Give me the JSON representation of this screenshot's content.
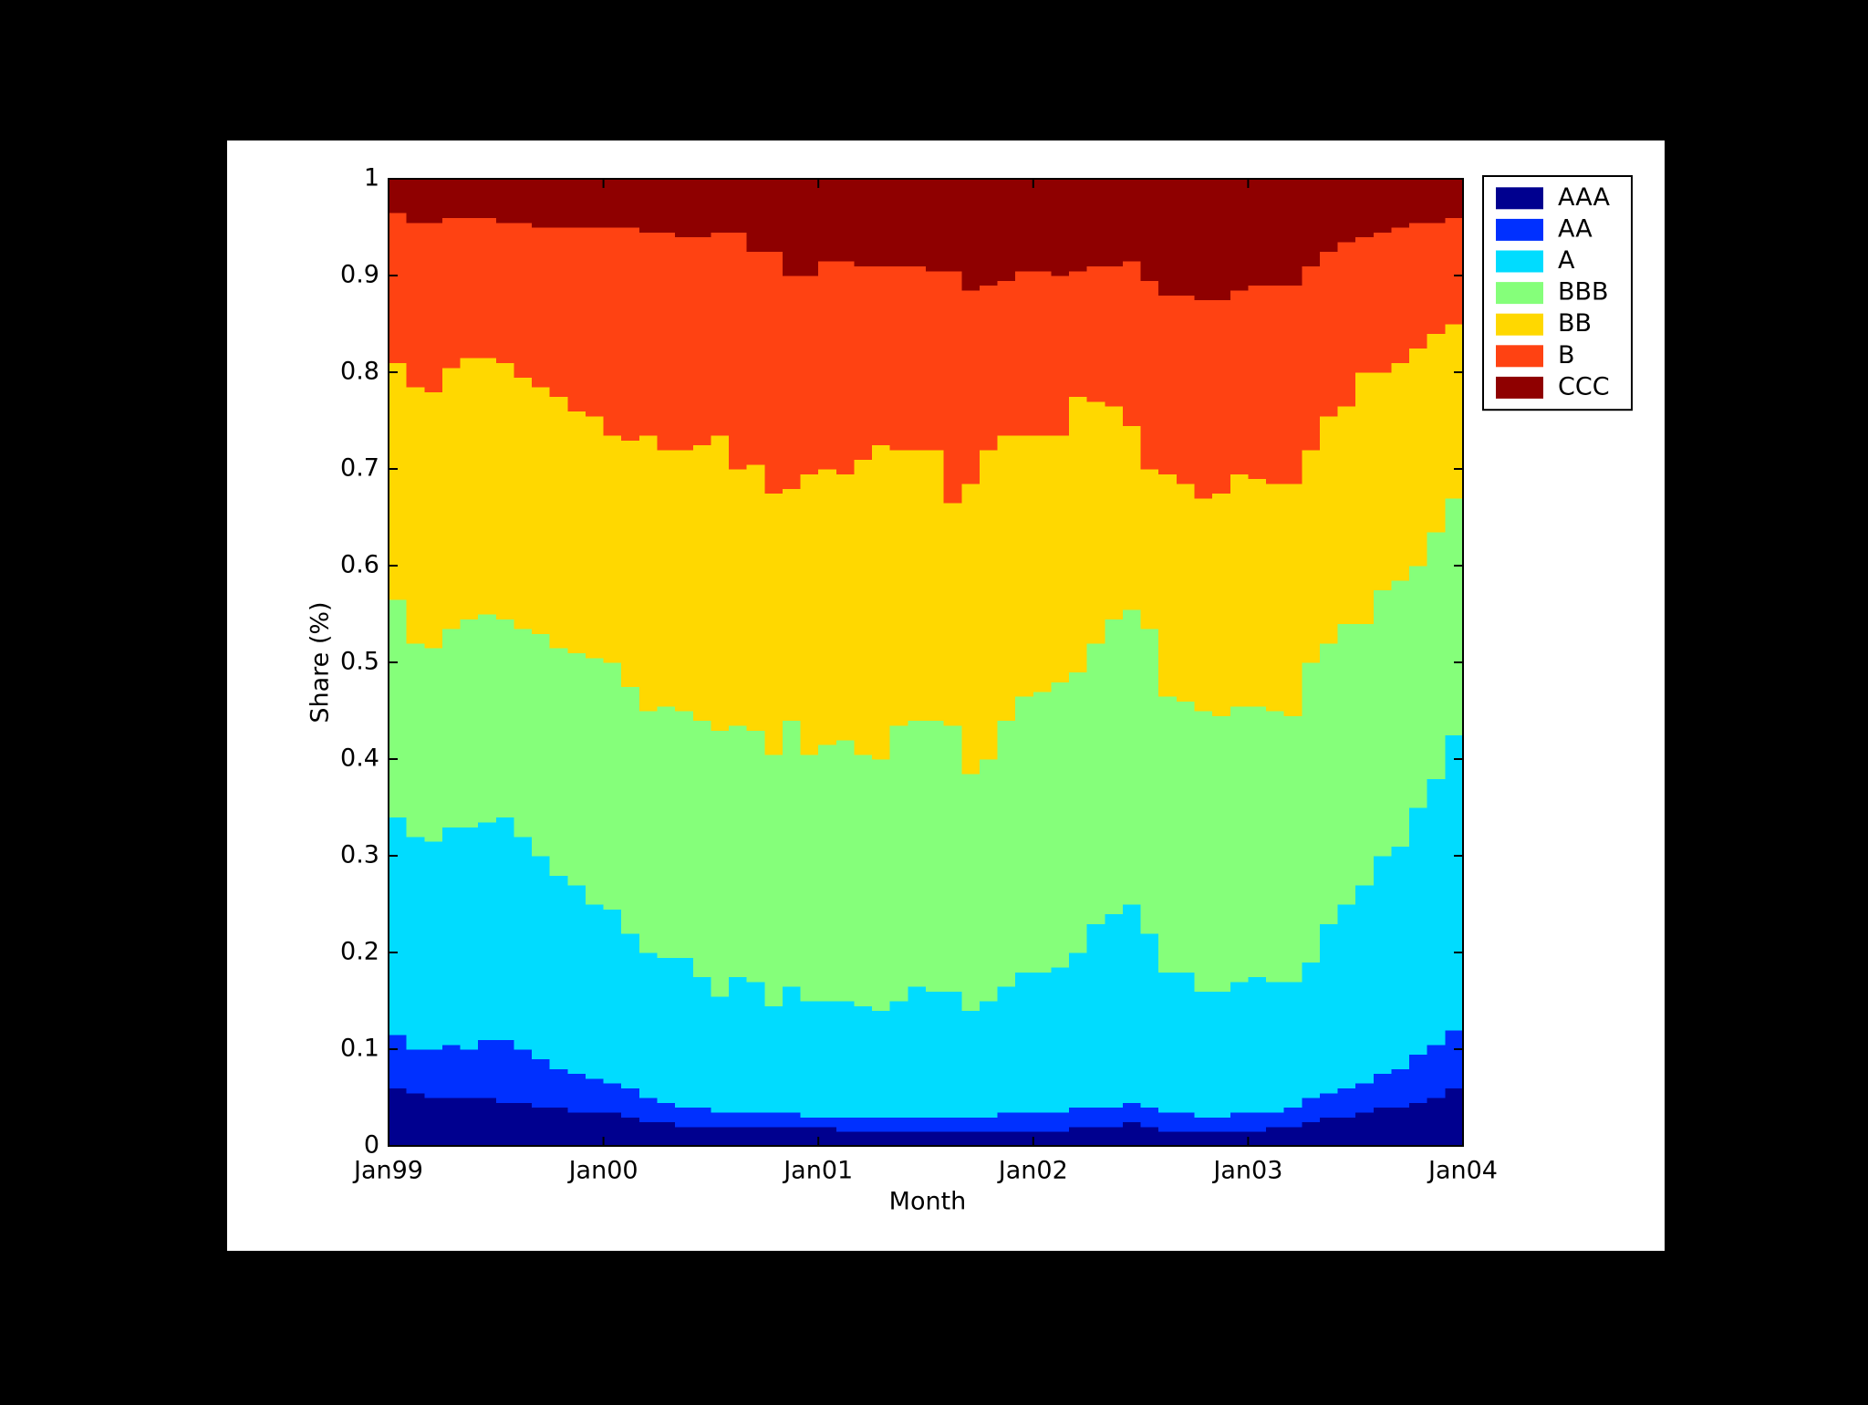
{
  "chart_data": {
    "type": "stacked_area",
    "x_label": "Month",
    "y_label": "Share (%)",
    "x": [
      "1999-01",
      "1999-02",
      "1999-03",
      "1999-04",
      "1999-05",
      "1999-06",
      "1999-07",
      "1999-08",
      "1999-09",
      "1999-10",
      "1999-11",
      "1999-12",
      "2000-01",
      "2000-02",
      "2000-03",
      "2000-04",
      "2000-05",
      "2000-06",
      "2000-07",
      "2000-08",
      "2000-09",
      "2000-10",
      "2000-11",
      "2000-12",
      "2001-01",
      "2001-02",
      "2001-03",
      "2001-04",
      "2001-05",
      "2001-06",
      "2001-07",
      "2001-08",
      "2001-09",
      "2001-10",
      "2001-11",
      "2001-12",
      "2002-01",
      "2002-02",
      "2002-03",
      "2002-04",
      "2002-05",
      "2002-06",
      "2002-07",
      "2002-08",
      "2002-09",
      "2002-10",
      "2002-11",
      "2002-12",
      "2003-01",
      "2003-02",
      "2003-03",
      "2003-04",
      "2003-05",
      "2003-06",
      "2003-07",
      "2003-08",
      "2003-09",
      "2003-10",
      "2003-11",
      "2003-12"
    ],
    "xlim": [
      "1999-01",
      "2004-01"
    ],
    "xticks": [
      {
        "value": "1999-01",
        "label": "Jan99"
      },
      {
        "value": "2000-01",
        "label": "Jan00"
      },
      {
        "value": "2001-01",
        "label": "Jan01"
      },
      {
        "value": "2002-01",
        "label": "Jan02"
      },
      {
        "value": "2003-01",
        "label": "Jan03"
      },
      {
        "value": "2004-01",
        "label": "Jan04"
      }
    ],
    "ylim": [
      0,
      1
    ],
    "yticks": [
      0,
      0.1,
      0.2,
      0.3,
      0.4,
      0.5,
      0.6,
      0.7,
      0.8,
      0.9,
      1
    ],
    "legend": "northeastoutside",
    "series": [
      {
        "name": "AAA",
        "color": "#00008f",
        "values": [
          0.06,
          0.055,
          0.05,
          0.05,
          0.05,
          0.05,
          0.045,
          0.045,
          0.04,
          0.04,
          0.035,
          0.035,
          0.035,
          0.03,
          0.025,
          0.025,
          0.02,
          0.02,
          0.02,
          0.02,
          0.02,
          0.02,
          0.02,
          0.02,
          0.02,
          0.015,
          0.015,
          0.015,
          0.015,
          0.015,
          0.015,
          0.015,
          0.015,
          0.015,
          0.015,
          0.015,
          0.015,
          0.015,
          0.02,
          0.02,
          0.02,
          0.025,
          0.02,
          0.015,
          0.015,
          0.015,
          0.015,
          0.015,
          0.015,
          0.02,
          0.02,
          0.025,
          0.03,
          0.03,
          0.035,
          0.04,
          0.04,
          0.045,
          0.05,
          0.06
        ]
      },
      {
        "name": "AA",
        "color": "#0030ff",
        "values": [
          0.055,
          0.045,
          0.05,
          0.055,
          0.05,
          0.06,
          0.065,
          0.055,
          0.05,
          0.04,
          0.04,
          0.035,
          0.03,
          0.03,
          0.025,
          0.02,
          0.02,
          0.02,
          0.015,
          0.015,
          0.015,
          0.015,
          0.015,
          0.01,
          0.01,
          0.015,
          0.015,
          0.015,
          0.015,
          0.015,
          0.015,
          0.015,
          0.015,
          0.015,
          0.02,
          0.02,
          0.02,
          0.02,
          0.02,
          0.02,
          0.02,
          0.02,
          0.02,
          0.02,
          0.02,
          0.015,
          0.015,
          0.02,
          0.02,
          0.015,
          0.02,
          0.025,
          0.025,
          0.03,
          0.03,
          0.035,
          0.04,
          0.05,
          0.055,
          0.06
        ]
      },
      {
        "name": "A",
        "color": "#00dcff",
        "values": [
          0.225,
          0.22,
          0.215,
          0.225,
          0.23,
          0.225,
          0.23,
          0.22,
          0.21,
          0.2,
          0.195,
          0.18,
          0.18,
          0.16,
          0.15,
          0.15,
          0.155,
          0.135,
          0.12,
          0.14,
          0.135,
          0.11,
          0.13,
          0.12,
          0.12,
          0.12,
          0.115,
          0.11,
          0.12,
          0.135,
          0.13,
          0.13,
          0.11,
          0.12,
          0.13,
          0.145,
          0.145,
          0.15,
          0.16,
          0.19,
          0.2,
          0.205,
          0.18,
          0.145,
          0.145,
          0.13,
          0.13,
          0.135,
          0.14,
          0.135,
          0.13,
          0.14,
          0.175,
          0.19,
          0.205,
          0.225,
          0.23,
          0.255,
          0.275,
          0.305
        ]
      },
      {
        "name": "BBB",
        "color": "#85ff7a",
        "values": [
          0.225,
          0.2,
          0.2,
          0.205,
          0.215,
          0.215,
          0.205,
          0.215,
          0.23,
          0.235,
          0.24,
          0.255,
          0.255,
          0.255,
          0.25,
          0.26,
          0.255,
          0.265,
          0.275,
          0.26,
          0.26,
          0.26,
          0.275,
          0.255,
          0.265,
          0.27,
          0.26,
          0.26,
          0.285,
          0.275,
          0.28,
          0.275,
          0.245,
          0.25,
          0.275,
          0.285,
          0.29,
          0.295,
          0.29,
          0.29,
          0.305,
          0.305,
          0.315,
          0.285,
          0.28,
          0.29,
          0.285,
          0.285,
          0.28,
          0.28,
          0.275,
          0.31,
          0.29,
          0.29,
          0.27,
          0.275,
          0.275,
          0.25,
          0.255,
          0.245
        ]
      },
      {
        "name": "BB",
        "color": "#ffd800",
        "values": [
          0.245,
          0.265,
          0.265,
          0.27,
          0.27,
          0.265,
          0.265,
          0.26,
          0.255,
          0.26,
          0.25,
          0.25,
          0.235,
          0.255,
          0.285,
          0.265,
          0.27,
          0.285,
          0.305,
          0.265,
          0.275,
          0.27,
          0.24,
          0.29,
          0.285,
          0.275,
          0.305,
          0.325,
          0.285,
          0.28,
          0.28,
          0.23,
          0.3,
          0.32,
          0.295,
          0.27,
          0.265,
          0.255,
          0.285,
          0.25,
          0.22,
          0.19,
          0.165,
          0.23,
          0.225,
          0.22,
          0.23,
          0.24,
          0.235,
          0.235,
          0.24,
          0.22,
          0.235,
          0.225,
          0.26,
          0.225,
          0.225,
          0.225,
          0.205,
          0.18
        ]
      },
      {
        "name": "B",
        "color": "#ff4212",
        "values": [
          0.155,
          0.17,
          0.175,
          0.155,
          0.145,
          0.145,
          0.145,
          0.16,
          0.165,
          0.175,
          0.19,
          0.195,
          0.215,
          0.22,
          0.21,
          0.225,
          0.22,
          0.215,
          0.21,
          0.245,
          0.22,
          0.25,
          0.22,
          0.205,
          0.215,
          0.22,
          0.2,
          0.185,
          0.19,
          0.19,
          0.185,
          0.24,
          0.2,
          0.17,
          0.16,
          0.17,
          0.17,
          0.165,
          0.13,
          0.14,
          0.145,
          0.17,
          0.195,
          0.185,
          0.195,
          0.205,
          0.2,
          0.19,
          0.2,
          0.205,
          0.205,
          0.19,
          0.17,
          0.17,
          0.14,
          0.145,
          0.14,
          0.13,
          0.115,
          0.11
        ]
      },
      {
        "name": "CCC",
        "color": "#8f0000",
        "values": [
          0.035,
          0.045,
          0.045,
          0.04,
          0.04,
          0.04,
          0.045,
          0.045,
          0.05,
          0.05,
          0.05,
          0.05,
          0.05,
          0.05,
          0.055,
          0.055,
          0.06,
          0.06,
          0.055,
          0.055,
          0.075,
          0.075,
          0.1,
          0.1,
          0.085,
          0.085,
          0.09,
          0.09,
          0.09,
          0.09,
          0.095,
          0.095,
          0.115,
          0.11,
          0.105,
          0.095,
          0.095,
          0.1,
          0.095,
          0.09,
          0.09,
          0.085,
          0.105,
          0.12,
          0.12,
          0.125,
          0.125,
          0.115,
          0.11,
          0.11,
          0.11,
          0.09,
          0.075,
          0.065,
          0.06,
          0.055,
          0.05,
          0.045,
          0.045,
          0.04
        ]
      }
    ]
  }
}
